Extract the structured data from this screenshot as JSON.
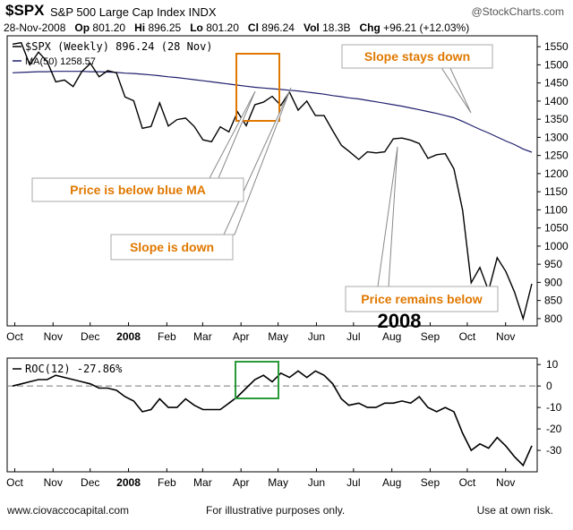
{
  "header": {
    "ticker": "$SPX",
    "title": "S&P 500 Large Cap Index",
    "exchange": "INDX",
    "source": "@StockCharts.com",
    "date": "28-Nov-2008",
    "op_label": "Op",
    "op": "801.20",
    "hi_label": "Hi",
    "hi": "896.25",
    "lo_label": "Lo",
    "lo": "801.20",
    "cl_label": "Cl",
    "cl": "896.24",
    "vol_label": "Vol",
    "vol": "18.3B",
    "chg_label": "Chg",
    "chg": "+96.21 (+12.03%)"
  },
  "footer": {
    "website": "www.ciovaccocapital.com",
    "note": "For illustrative purposes only.",
    "risk": "Use at own risk."
  },
  "colors": {
    "price": "#000000",
    "ma": "#1f1f6e",
    "annotation_text": "#e07800",
    "box_upper": "#e07800",
    "box_lower": "#2a9a3a",
    "zero_line": "#777777"
  },
  "chart_data": [
    {
      "type": "line",
      "legend": [
        "$SPX (Weekly) 896.24 (28 Nov)",
        "MA(50) 1258.57"
      ],
      "x": [
        "2007-10-05",
        "2007-10-12",
        "2007-10-19",
        "2007-10-26",
        "2007-11-02",
        "2007-11-09",
        "2007-11-16",
        "2007-11-23",
        "2007-11-30",
        "2007-12-07",
        "2007-12-14",
        "2007-12-21",
        "2007-12-28",
        "2008-01-04",
        "2008-01-11",
        "2008-01-18",
        "2008-01-25",
        "2008-02-01",
        "2008-02-08",
        "2008-02-15",
        "2008-02-22",
        "2008-02-29",
        "2008-03-07",
        "2008-03-14",
        "2008-03-21",
        "2008-03-28",
        "2008-04-04",
        "2008-04-11",
        "2008-04-18",
        "2008-04-25",
        "2008-05-02",
        "2008-05-09",
        "2008-05-16",
        "2008-05-23",
        "2008-05-30",
        "2008-06-06",
        "2008-06-13",
        "2008-06-20",
        "2008-06-27",
        "2008-07-03",
        "2008-07-11",
        "2008-07-18",
        "2008-07-25",
        "2008-08-01",
        "2008-08-08",
        "2008-08-15",
        "2008-08-22",
        "2008-08-29",
        "2008-09-05",
        "2008-09-12",
        "2008-09-19",
        "2008-09-26",
        "2008-10-03",
        "2008-10-10",
        "2008-10-17",
        "2008-10-24",
        "2008-10-31",
        "2008-11-07",
        "2008-11-14",
        "2008-11-21",
        "2008-11-28"
      ],
      "series": [
        {
          "name": "$SPX (Weekly) 896.24 (28 Nov)",
          "values": [
            1557,
            1561,
            1500,
            1535,
            1509,
            1453,
            1458,
            1440,
            1481,
            1504,
            1467,
            1484,
            1478,
            1411,
            1401,
            1325,
            1330,
            1395,
            1331,
            1349,
            1353,
            1330,
            1293,
            1288,
            1329,
            1315,
            1370,
            1332,
            1390,
            1397,
            1413,
            1388,
            1425,
            1375,
            1400,
            1360,
            1360,
            1318,
            1278,
            1262,
            1239,
            1260,
            1257,
            1260,
            1296,
            1298,
            1292,
            1283,
            1242,
            1252,
            1255,
            1213,
            1099,
            899,
            941,
            877,
            968,
            930,
            873,
            800,
            896
          ]
        },
        {
          "name": "MA(50) 1258.57",
          "values": [
            1478,
            1479,
            1480,
            1481,
            1481,
            1482,
            1482,
            1482,
            1482,
            1481,
            1481,
            1480,
            1479,
            1477,
            1476,
            1474,
            1472,
            1470,
            1467,
            1465,
            1462,
            1459,
            1456,
            1453,
            1450,
            1447,
            1444,
            1441,
            1438,
            1436,
            1434,
            1432,
            1430,
            1428,
            1425,
            1422,
            1419,
            1415,
            1412,
            1409,
            1406,
            1402,
            1398,
            1394,
            1390,
            1386,
            1381,
            1376,
            1371,
            1366,
            1360,
            1354,
            1344,
            1333,
            1322,
            1312,
            1301,
            1290,
            1280,
            1268,
            1259
          ]
        }
      ],
      "ylim": [
        780,
        1580
      ],
      "yticks": [
        800,
        850,
        900,
        950,
        1000,
        1050,
        1100,
        1150,
        1200,
        1250,
        1300,
        1350,
        1400,
        1450,
        1500,
        1550
      ],
      "xtick_labels": [
        "Oct",
        "Nov",
        "Dec",
        "2008",
        "Feb",
        "Mar",
        "Apr",
        "May",
        "Jun",
        "Jul",
        "Aug",
        "Sep",
        "Oct",
        "Nov"
      ],
      "annotations": [
        "Slope stays down",
        "Price is below blue MA",
        "Slope is down",
        "Price remains below",
        "2008"
      ]
    },
    {
      "type": "line",
      "legend": [
        "ROC(12) -27.86%"
      ],
      "x": [
        "2007-10-05",
        "2007-10-12",
        "2007-10-19",
        "2007-10-26",
        "2007-11-02",
        "2007-11-09",
        "2007-11-16",
        "2007-11-23",
        "2007-11-30",
        "2007-12-07",
        "2007-12-14",
        "2007-12-21",
        "2007-12-28",
        "2008-01-04",
        "2008-01-11",
        "2008-01-18",
        "2008-01-25",
        "2008-02-01",
        "2008-02-08",
        "2008-02-15",
        "2008-02-22",
        "2008-02-29",
        "2008-03-07",
        "2008-03-14",
        "2008-03-21",
        "2008-03-28",
        "2008-04-04",
        "2008-04-11",
        "2008-04-18",
        "2008-04-25",
        "2008-05-02",
        "2008-05-09",
        "2008-05-16",
        "2008-05-23",
        "2008-05-30",
        "2008-06-06",
        "2008-06-13",
        "2008-06-20",
        "2008-06-27",
        "2008-07-03",
        "2008-07-11",
        "2008-07-18",
        "2008-07-25",
        "2008-08-01",
        "2008-08-08",
        "2008-08-15",
        "2008-08-22",
        "2008-08-29",
        "2008-09-05",
        "2008-09-12",
        "2008-09-19",
        "2008-09-26",
        "2008-10-03",
        "2008-10-10",
        "2008-10-17",
        "2008-10-24",
        "2008-10-31",
        "2008-11-07",
        "2008-11-14",
        "2008-11-21",
        "2008-11-28"
      ],
      "series": [
        {
          "name": "ROC(12) -27.86%",
          "values": [
            0,
            1,
            2,
            3,
            3,
            5,
            4,
            3,
            2,
            1,
            -1,
            -1,
            -2,
            -5,
            -7,
            -12,
            -11,
            -6,
            -10,
            -10,
            -6,
            -9,
            -11,
            -11,
            -11,
            -8,
            -5,
            -1,
            3,
            5,
            2,
            6,
            4,
            7,
            4,
            7,
            5,
            1,
            -6,
            -9,
            -8,
            -10,
            -10,
            -8,
            -8,
            -7,
            -8,
            -5,
            -10,
            -12,
            -10,
            -12,
            -22,
            -30,
            -27,
            -29,
            -24,
            -28,
            -33,
            -37,
            -27.86
          ]
        }
      ],
      "ylim": [
        -40,
        13
      ],
      "yticks": [
        -30,
        -20,
        -10,
        0,
        10
      ],
      "xtick_labels": [
        "Oct",
        "Nov",
        "Dec",
        "2008",
        "Feb",
        "Mar",
        "Apr",
        "May",
        "Jun",
        "Jul",
        "Aug",
        "Sep",
        "Oct",
        "Nov"
      ]
    }
  ]
}
